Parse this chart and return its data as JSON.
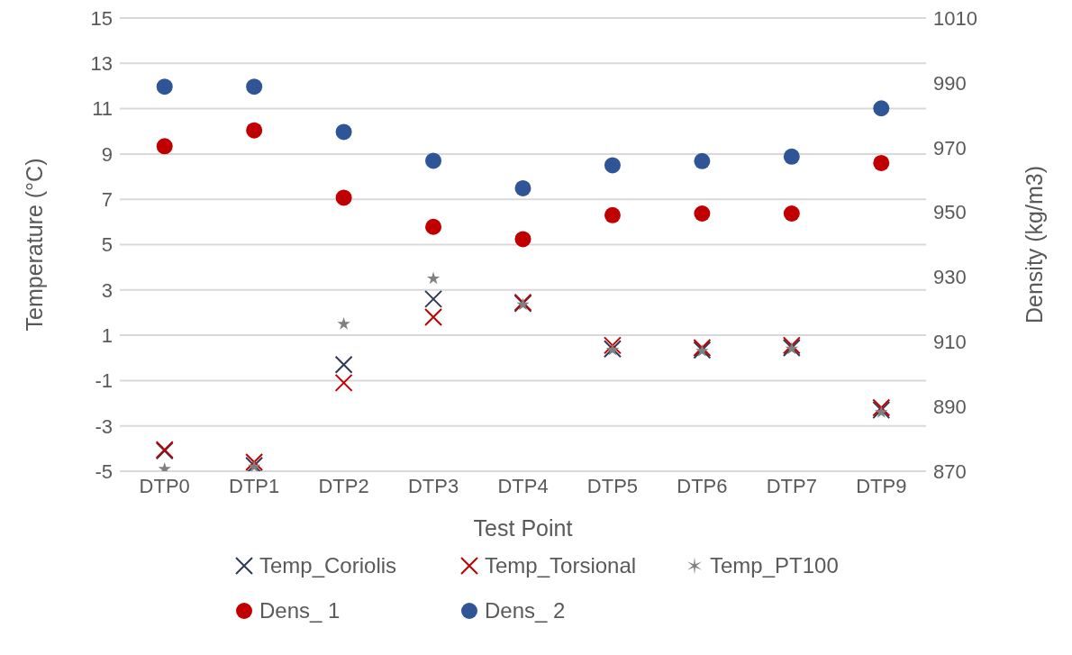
{
  "chart_data": {
    "type": "scatter",
    "xlabel": "Test Point",
    "ylabel": "Temperature (°C)",
    "y2label": "Density (kg/m3)",
    "categories": [
      "DTP0",
      "DTP1",
      "DTP2",
      "DTP3",
      "DTP4",
      "DTP5",
      "DTP6",
      "DTP7",
      "DTP9"
    ],
    "series": [
      {
        "name": "Temp_Coriolis",
        "color": "#2e3b55",
        "marker": "cross",
        "values": [
          -4.1,
          -4.75,
          -0.3,
          2.6,
          2.4,
          0.4,
          0.35,
          0.45,
          -2.3
        ]
      },
      {
        "name": "Temp_Torsional",
        "color": "#c00000",
        "marker": "cross",
        "values": [
          -4.05,
          -4.6,
          -1.1,
          1.8,
          2.45,
          0.55,
          0.45,
          0.55,
          -2.2
        ]
      },
      {
        "name": "Temp_PT100",
        "color": "#808080",
        "marker": "star",
        "values": [
          -4.9,
          -4.8,
          1.5,
          3.5,
          2.35,
          0.35,
          0.3,
          0.4,
          -2.4
        ]
      },
      {
        "name": "Dens_ 1",
        "color": "#c00000",
        "marker": "circle",
        "axis": "y2",
        "values": [
          970.4,
          975.3,
          954.5,
          945.5,
          941.7,
          949.1,
          949.6,
          949.6,
          965.2
        ]
      },
      {
        "name": "Dens_ 2",
        "color": "#2f5597",
        "marker": "circle",
        "axis": "y2",
        "values": [
          988.8,
          988.8,
          974.8,
          965.9,
          957.4,
          964.5,
          965.8,
          967.2,
          982.1
        ]
      }
    ],
    "ylim": [
      -5,
      15
    ],
    "yticks": [
      -5,
      -3,
      -1,
      1,
      3,
      5,
      7,
      9,
      11,
      13,
      15
    ],
    "y2lim": [
      870,
      1010
    ],
    "y2ticks": [
      870,
      890,
      910,
      930,
      950,
      970,
      990,
      1010
    ],
    "grid": "y",
    "legend": "bottom"
  }
}
